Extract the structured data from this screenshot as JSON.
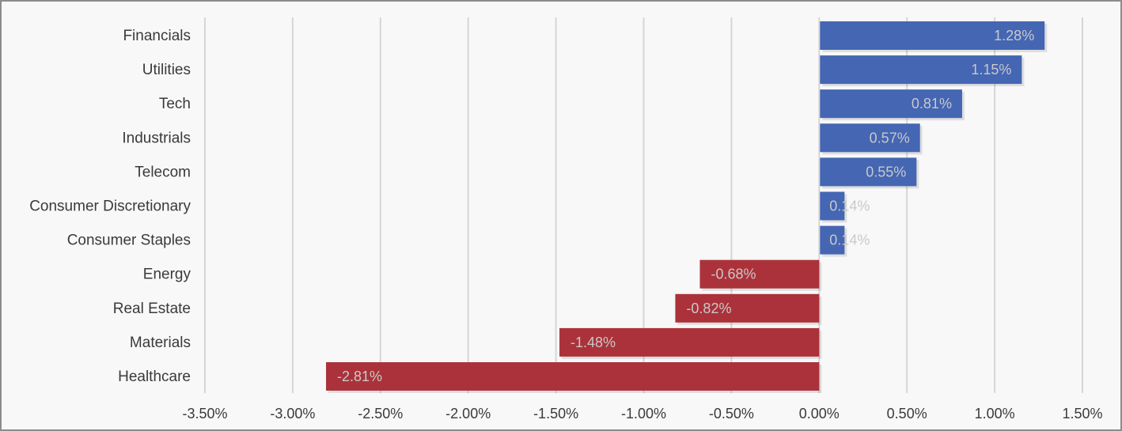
{
  "chart_data": {
    "type": "bar",
    "orientation": "horizontal",
    "categories": [
      "Financials",
      "Utilities",
      "Tech",
      "Industrials",
      "Telecom",
      "Consumer Discretionary",
      "Consumer Staples",
      "Energy",
      "Real Estate",
      "Materials",
      "Healthcare"
    ],
    "values": [
      1.28,
      1.15,
      0.81,
      0.57,
      0.55,
      0.14,
      0.14,
      -0.68,
      -0.82,
      -1.48,
      -2.81
    ],
    "data_labels": [
      "1.28%",
      "1.15%",
      "0.81%",
      "0.57%",
      "0.55%",
      "0.14%",
      "0.14%",
      "-0.68%",
      "-0.82%",
      "-1.48%",
      "-2.81%"
    ],
    "xlim": [
      -3.5,
      1.5
    ],
    "x_ticks": [
      -3.5,
      -3.0,
      -2.5,
      -2.0,
      -1.5,
      -1.0,
      -0.5,
      0.0,
      0.5,
      1.0,
      1.5
    ],
    "x_tick_labels": [
      "-3.50%",
      "-3.00%",
      "-2.50%",
      "-2.00%",
      "-1.50%",
      "-1.00%",
      "-0.50%",
      "0.00%",
      "0.50%",
      "1.00%",
      "1.50%"
    ],
    "title": "",
    "xlabel": "",
    "ylabel": "",
    "grid": "vertical",
    "legend": "none",
    "colors": {
      "positive": "#4466b3",
      "negative": "#ab323a"
    }
  }
}
